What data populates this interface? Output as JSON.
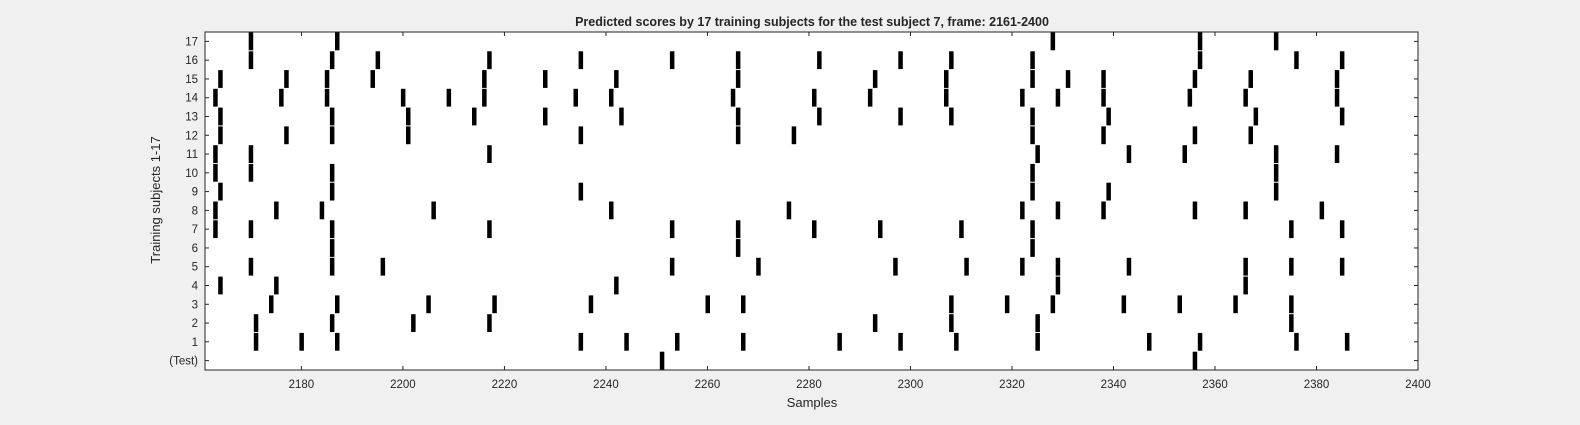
{
  "chart_data": {
    "type": "scatter",
    "title": "Predicted scores by 17 training subjects for the test subject 7, frame: 2161-2400",
    "xlabel": "Samples",
    "ylabel": "Training subjects 1-17",
    "xlim": [
      2161,
      2400
    ],
    "ylim": [
      0,
      18
    ],
    "x_ticks": [
      2180,
      2200,
      2220,
      2240,
      2260,
      2280,
      2300,
      2320,
      2340,
      2360,
      2380,
      2400
    ],
    "y_tick_labels": [
      "(Test)",
      "1",
      "2",
      "3",
      "4",
      "5",
      "6",
      "7",
      "8",
      "9",
      "10",
      "11",
      "12",
      "13",
      "14",
      "15",
      "16",
      "17"
    ],
    "grid": false,
    "marker": "vertical-bar",
    "mark_color": "#000000",
    "rows": [
      {
        "label": "(Test)",
        "x": [
          2251,
          2356
        ]
      },
      {
        "label": "1",
        "x": [
          2171,
          2180,
          2187,
          2235,
          2244,
          2254,
          2267,
          2286,
          2298,
          2309,
          2325,
          2347,
          2357,
          2376,
          2386
        ]
      },
      {
        "label": "2",
        "x": [
          2171,
          2186,
          2202,
          2217,
          2293,
          2308,
          2325,
          2375
        ]
      },
      {
        "label": "3",
        "x": [
          2174,
          2187,
          2205,
          2218,
          2237,
          2260,
          2267,
          2308,
          2319,
          2328,
          2342,
          2353,
          2364,
          2375
        ]
      },
      {
        "label": "4",
        "x": [
          2164,
          2175,
          2242,
          2329,
          2366
        ]
      },
      {
        "label": "5",
        "x": [
          2170,
          2186,
          2196,
          2253,
          2270,
          2297,
          2311,
          2322,
          2329,
          2343,
          2366,
          2375,
          2385
        ]
      },
      {
        "label": "6",
        "x": [
          2186,
          2266,
          2324
        ]
      },
      {
        "label": "7",
        "x": [
          2163,
          2170,
          2186,
          2217,
          2253,
          2266,
          2281,
          2294,
          2310,
          2324,
          2375,
          2385
        ]
      },
      {
        "label": "8",
        "x": [
          2163,
          2175,
          2184,
          2206,
          2241,
          2276,
          2322,
          2329,
          2338,
          2356,
          2366,
          2381
        ]
      },
      {
        "label": "9",
        "x": [
          2164,
          2186,
          2235,
          2324,
          2339,
          2372
        ]
      },
      {
        "label": "10",
        "x": [
          2163,
          2170,
          2186,
          2324,
          2372
        ]
      },
      {
        "label": "11",
        "x": [
          2163,
          2170,
          2217,
          2325,
          2343,
          2354,
          2372,
          2384
        ]
      },
      {
        "label": "12",
        "x": [
          2164,
          2177,
          2186,
          2201,
          2235,
          2266,
          2277,
          2324,
          2338,
          2356,
          2367
        ]
      },
      {
        "label": "13",
        "x": [
          2164,
          2186,
          2201,
          2214,
          2228,
          2243,
          2266,
          2282,
          2298,
          2308,
          2324,
          2339,
          2368,
          2385
        ]
      },
      {
        "label": "14",
        "x": [
          2163,
          2176,
          2185,
          2200,
          2209,
          2216,
          2234,
          2241,
          2265,
          2281,
          2292,
          2307,
          2322,
          2329,
          2338,
          2355,
          2366,
          2384
        ]
      },
      {
        "label": "15",
        "x": [
          2164,
          2177,
          2185,
          2194,
          2216,
          2228,
          2242,
          2266,
          2293,
          2307,
          2324,
          2331,
          2338,
          2356,
          2367,
          2384
        ]
      },
      {
        "label": "16",
        "x": [
          2170,
          2186,
          2195,
          2217,
          2235,
          2253,
          2266,
          2282,
          2298,
          2308,
          2324,
          2357,
          2376,
          2385
        ]
      },
      {
        "label": "17",
        "x": [
          2170,
          2187,
          2328,
          2357,
          2372
        ]
      }
    ]
  }
}
